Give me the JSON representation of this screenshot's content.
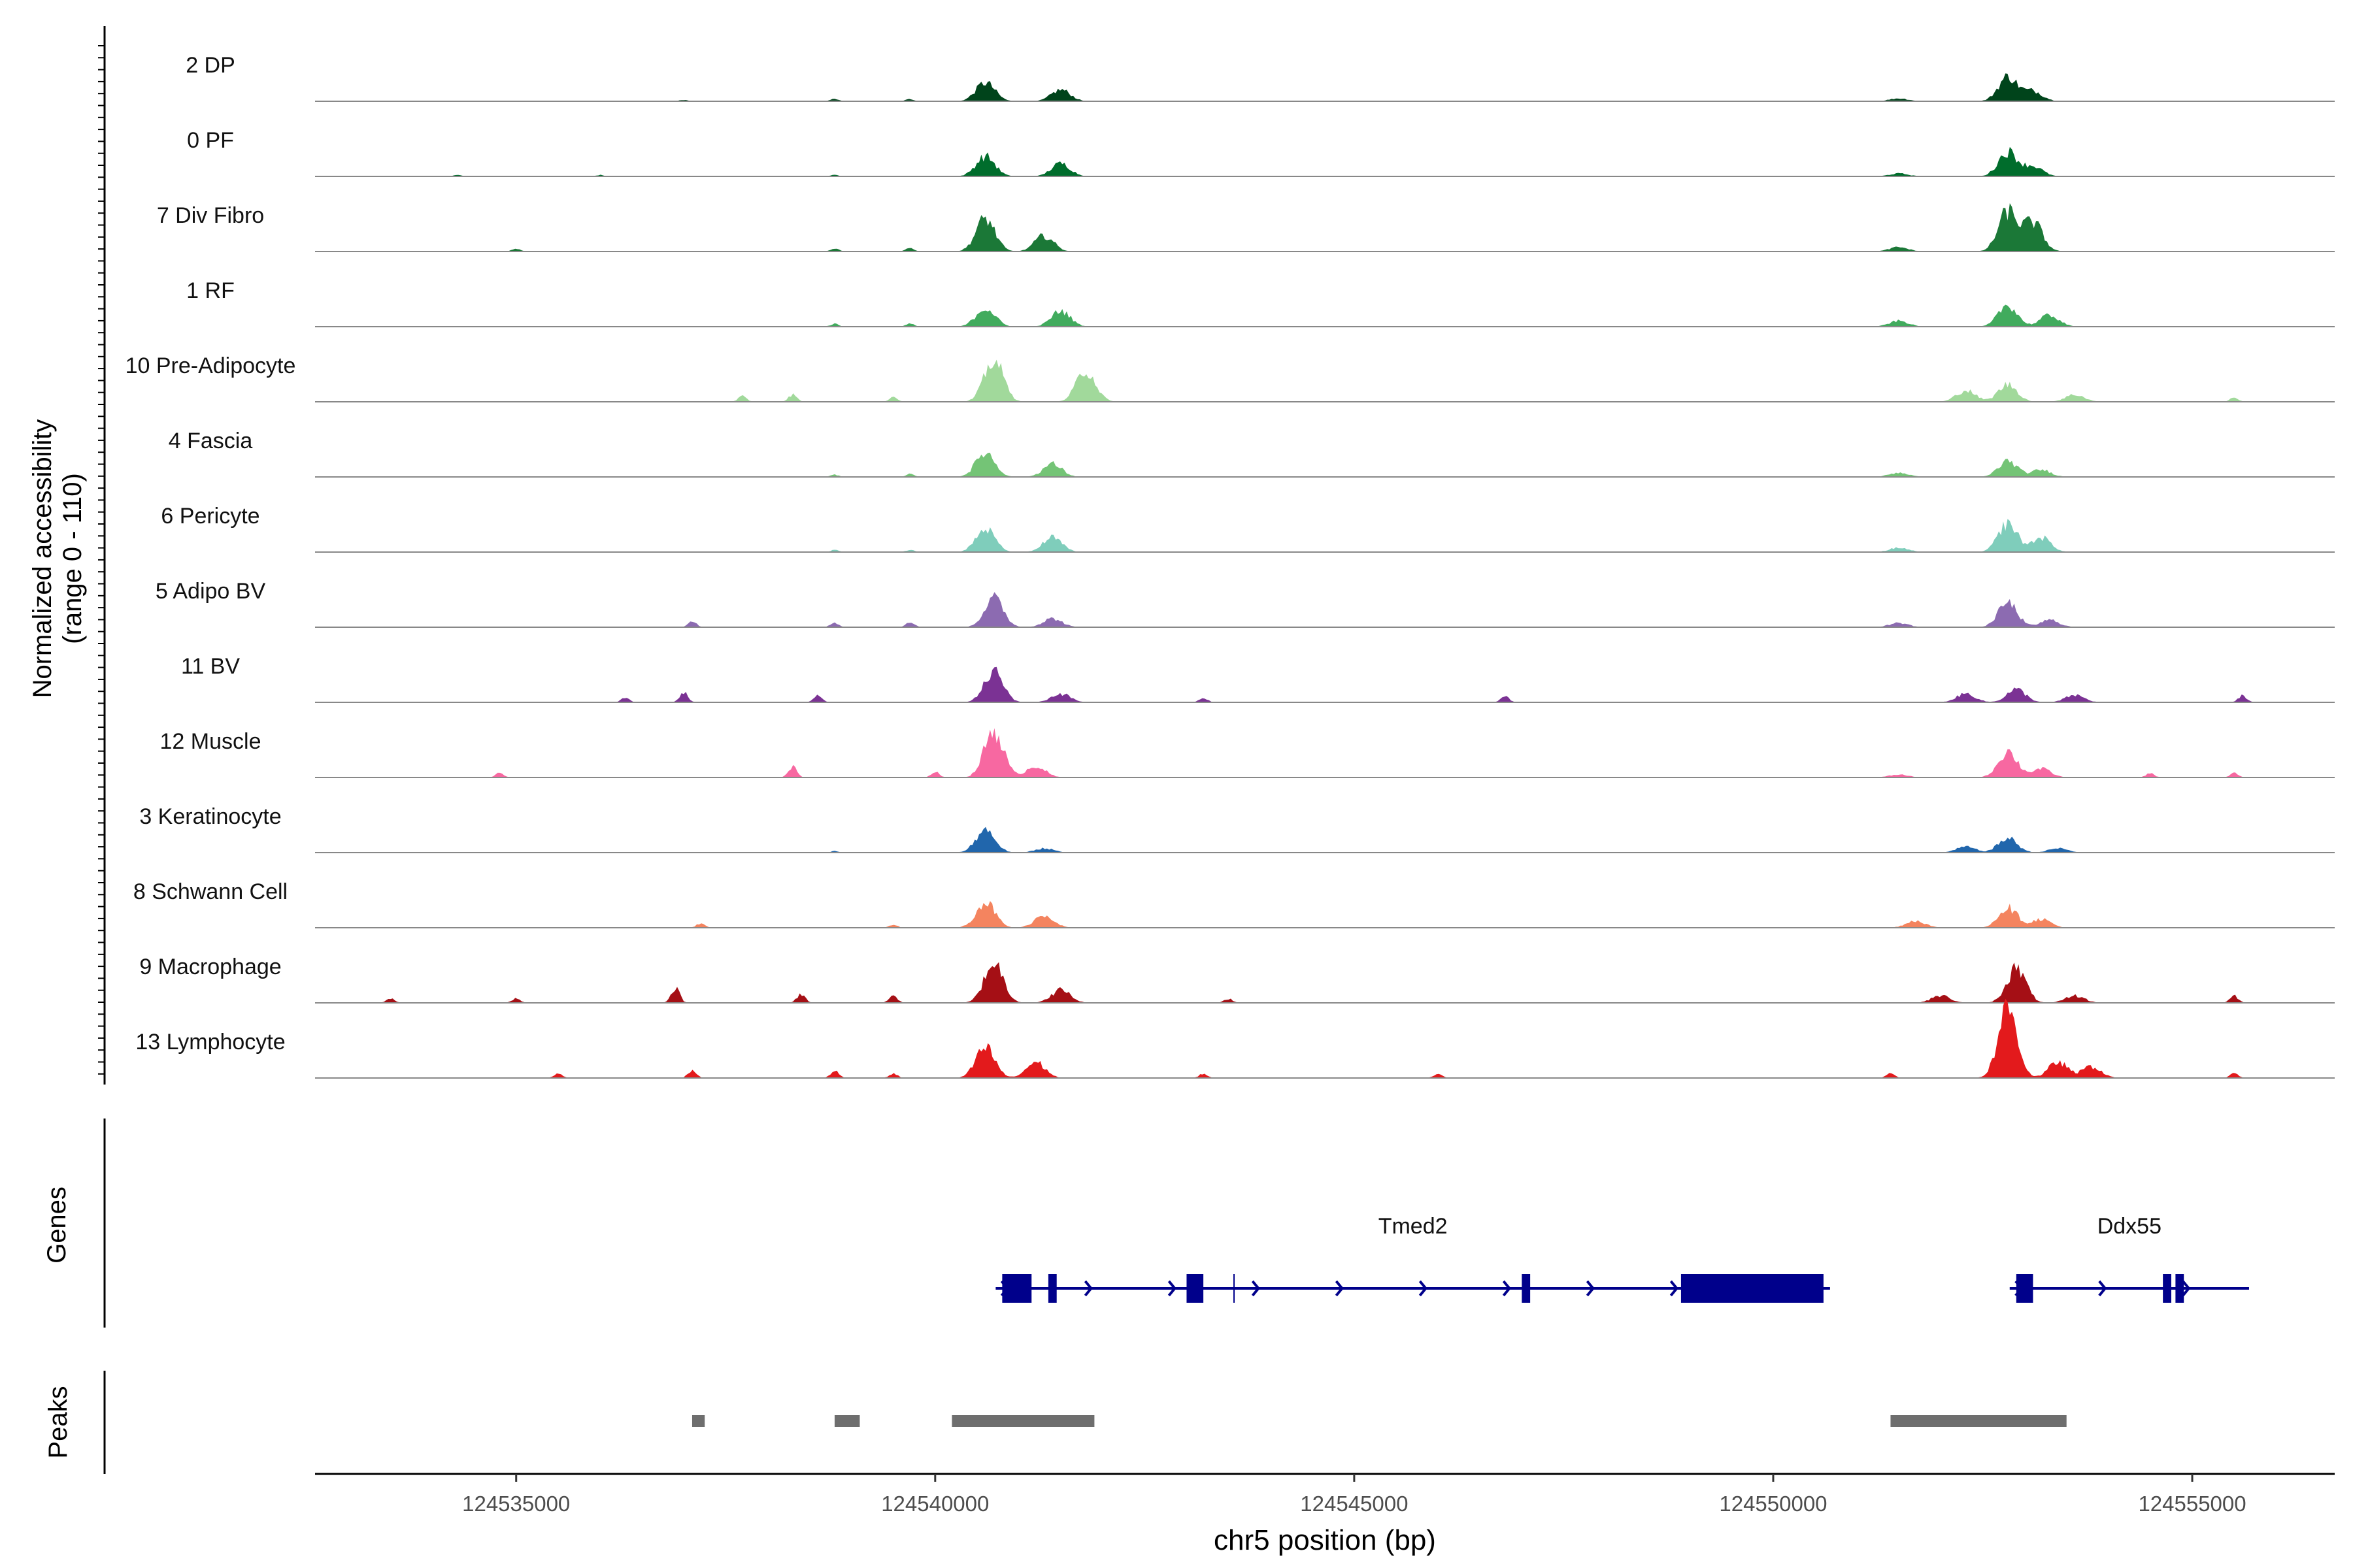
{
  "chart_data": {
    "type": "area",
    "y_axis_title": [
      "Normalized accessibility",
      "(range 0 - 110)"
    ],
    "y_range": [
      0,
      110
    ],
    "x_axis_title": "chr5 position (bp)",
    "xlim": [
      124532600,
      124556700
    ],
    "x_ticks": [
      124535000,
      124540000,
      124545000,
      124550000,
      124555000
    ],
    "x_tick_labels": [
      "124535000",
      "124540000",
      "124545000",
      "124550000",
      "124555000"
    ],
    "tracks": [
      {
        "name": "2 DP",
        "color": "#00441b",
        "peaks": [
          [
            124540600,
            0.26
          ],
          [
            124541500,
            0.16
          ],
          [
            124552800,
            0.34
          ],
          [
            124553100,
            0.14
          ],
          [
            124551500,
            0.04
          ]
        ],
        "noise": [
          [
            124537000,
            0.02
          ],
          [
            124538800,
            0.03
          ],
          [
            124539700,
            0.03
          ]
        ]
      },
      {
        "name": "0 PF",
        "color": "#006d2c",
        "peaks": [
          [
            124540600,
            0.28
          ],
          [
            124541500,
            0.18
          ],
          [
            124552800,
            0.34
          ],
          [
            124553100,
            0.14
          ],
          [
            124551500,
            0.04
          ]
        ],
        "noise": [
          [
            124534300,
            0.02
          ],
          [
            124536000,
            0.02
          ],
          [
            124538800,
            0.02
          ]
        ]
      },
      {
        "name": "7 Div Fibro",
        "color": "#1b7837",
        "peaks": [
          [
            124540600,
            0.46
          ],
          [
            124541300,
            0.22
          ],
          [
            124552800,
            0.55
          ],
          [
            124553100,
            0.4
          ],
          [
            124551500,
            0.06
          ]
        ],
        "noise": [
          [
            124535000,
            0.04
          ],
          [
            124538800,
            0.04
          ],
          [
            124539700,
            0.05
          ]
        ]
      },
      {
        "name": "1 RF",
        "color": "#41ab5d",
        "peaks": [
          [
            124540600,
            0.26
          ],
          [
            124541500,
            0.22
          ],
          [
            124552800,
            0.3
          ],
          [
            124553300,
            0.16
          ],
          [
            124551500,
            0.08
          ]
        ],
        "noise": [
          [
            124538800,
            0.04
          ],
          [
            124539700,
            0.04
          ]
        ]
      },
      {
        "name": "10 Pre-Adipocyte",
        "color": "#a1d99b",
        "peaks": [
          [
            124540700,
            0.58
          ],
          [
            124541800,
            0.44
          ],
          [
            124552800,
            0.24
          ],
          [
            124552300,
            0.16
          ],
          [
            124553600,
            0.1
          ]
        ],
        "noise": [
          [
            124537700,
            0.08
          ],
          [
            124538300,
            0.1
          ],
          [
            124539500,
            0.06
          ],
          [
            124555500,
            0.06
          ]
        ]
      },
      {
        "name": "4 Fascia",
        "color": "#74c476",
        "peaks": [
          [
            124540600,
            0.34
          ],
          [
            124541400,
            0.18
          ],
          [
            124552800,
            0.22
          ],
          [
            124553200,
            0.1
          ],
          [
            124551500,
            0.06
          ]
        ],
        "noise": [
          [
            124538800,
            0.03
          ],
          [
            124539700,
            0.04
          ]
        ]
      },
      {
        "name": "6 Pericyte",
        "color": "#7fcdbb",
        "peaks": [
          [
            124540600,
            0.32
          ],
          [
            124541400,
            0.2
          ],
          [
            124552800,
            0.4
          ],
          [
            124553200,
            0.2
          ],
          [
            124551500,
            0.06
          ]
        ],
        "noise": [
          [
            124538800,
            0.03
          ],
          [
            124539700,
            0.03
          ]
        ]
      },
      {
        "name": "5 Adipo BV",
        "color": "#8c6bb1",
        "peaks": [
          [
            124540700,
            0.4
          ],
          [
            124541400,
            0.12
          ],
          [
            124552800,
            0.34
          ],
          [
            124553300,
            0.1
          ],
          [
            124551500,
            0.06
          ]
        ],
        "noise": [
          [
            124537100,
            0.08
          ],
          [
            124538800,
            0.06
          ],
          [
            124539700,
            0.08
          ]
        ]
      },
      {
        "name": "11 BV",
        "color": "#7b3294",
        "peaks": [
          [
            124540700,
            0.42
          ],
          [
            124541500,
            0.12
          ],
          [
            124552900,
            0.18
          ],
          [
            124552300,
            0.12
          ],
          [
            124553600,
            0.1
          ]
        ],
        "noise": [
          [
            124536300,
            0.06
          ],
          [
            124537000,
            0.14
          ],
          [
            124538600,
            0.1
          ],
          [
            124543200,
            0.06
          ],
          [
            124546800,
            0.08
          ],
          [
            124555600,
            0.1
          ]
        ]
      },
      {
        "name": "12 Muscle",
        "color": "#f768a1",
        "peaks": [
          [
            124540700,
            0.66
          ],
          [
            124541200,
            0.16
          ],
          [
            124552800,
            0.36
          ],
          [
            124553200,
            0.12
          ],
          [
            124551500,
            0.04
          ]
        ],
        "noise": [
          [
            124534800,
            0.06
          ],
          [
            124538300,
            0.16
          ],
          [
            124540000,
            0.08
          ],
          [
            124554500,
            0.06
          ],
          [
            124555500,
            0.06
          ]
        ]
      },
      {
        "name": "3 Keratinocyte",
        "color": "#2166ac",
        "peaks": [
          [
            124540600,
            0.32
          ],
          [
            124541300,
            0.06
          ],
          [
            124552800,
            0.2
          ],
          [
            124552300,
            0.08
          ],
          [
            124553400,
            0.06
          ]
        ],
        "noise": [
          [
            124538800,
            0.02
          ]
        ]
      },
      {
        "name": "8 Schwann Cell",
        "color": "#f4845f",
        "peaks": [
          [
            124540600,
            0.36
          ],
          [
            124541300,
            0.18
          ],
          [
            124552800,
            0.28
          ],
          [
            124553200,
            0.12
          ],
          [
            124551700,
            0.1
          ]
        ],
        "noise": [
          [
            124537200,
            0.06
          ],
          [
            124539500,
            0.04
          ]
        ]
      },
      {
        "name": "9 Macrophage",
        "color": "#a50f15",
        "peaks": [
          [
            124540700,
            0.56
          ],
          [
            124541500,
            0.18
          ],
          [
            124552900,
            0.48
          ],
          [
            124552000,
            0.1
          ],
          [
            124553600,
            0.1
          ]
        ],
        "noise": [
          [
            124533500,
            0.06
          ],
          [
            124535000,
            0.06
          ],
          [
            124536900,
            0.22
          ],
          [
            124538400,
            0.12
          ],
          [
            124539500,
            0.1
          ],
          [
            124543500,
            0.06
          ],
          [
            124555500,
            0.1
          ]
        ]
      },
      {
        "name": "13 Lymphocyte",
        "color": "#e31a1c",
        "peaks": [
          [
            124540600,
            0.42
          ],
          [
            124541200,
            0.22
          ],
          [
            124552800,
            0.98
          ],
          [
            124553400,
            0.22
          ],
          [
            124553800,
            0.16
          ]
        ],
        "noise": [
          [
            124535500,
            0.06
          ],
          [
            124537100,
            0.1
          ],
          [
            124538800,
            0.1
          ],
          [
            124539500,
            0.06
          ],
          [
            124543200,
            0.06
          ],
          [
            124546000,
            0.06
          ],
          [
            124551400,
            0.06
          ],
          [
            124555500,
            0.06
          ]
        ]
      }
    ],
    "genes_label": "Genes",
    "genes": [
      {
        "name": "Tmed2",
        "start": 124540800,
        "end": 124550600,
        "strand": "+",
        "color": "#00008b",
        "exons": [
          [
            124540800,
            124541150
          ],
          [
            124541350,
            124541450
          ],
          [
            124543000,
            124543200
          ],
          [
            124547000,
            124547100
          ],
          [
            124548900,
            124550600
          ]
        ]
      },
      {
        "name": "Ddx55",
        "start": 124552900,
        "end": 124555600,
        "strand": "+",
        "color": "#00008b",
        "exons": [
          [
            124552900,
            124553100
          ],
          [
            124554650,
            124554750
          ],
          [
            124554800,
            124554900
          ]
        ]
      }
    ],
    "peaks_label": "Peaks",
    "peak_regions": [
      [
        124537100,
        124537250
      ],
      [
        124538800,
        124539100
      ],
      [
        124540200,
        124541900
      ],
      [
        124551400,
        124553500
      ]
    ],
    "peak_color": "#6e6e6e"
  }
}
